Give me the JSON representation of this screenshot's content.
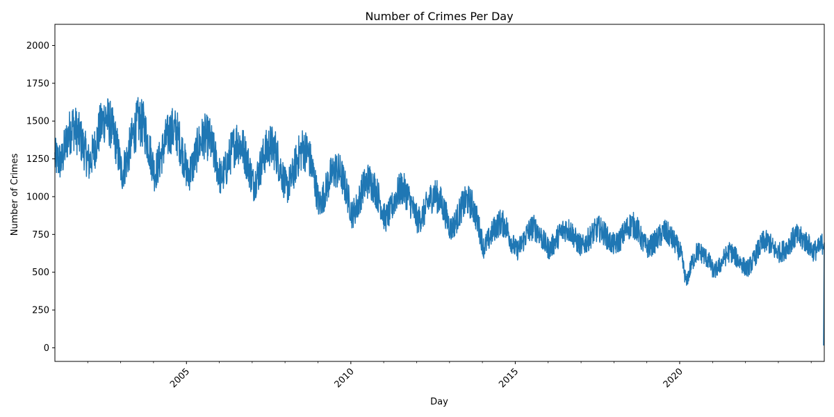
{
  "chart_data": {
    "type": "line",
    "title": "Number of Crimes Per Day",
    "xlabel": "Day",
    "ylabel": "Number of Crimes",
    "x_range": [
      "2001-01-01",
      "2024-05-25"
    ],
    "ylim": [
      -90,
      2140
    ],
    "y_ticks": [
      0,
      250,
      500,
      750,
      1000,
      1250,
      1500,
      1750,
      2000
    ],
    "x_major_ticks": [
      "2005-01-01",
      "2010-01-01",
      "2015-01-01",
      "2020-01-01"
    ],
    "x_major_tick_labels": [
      "2005",
      "2010",
      "2015",
      "2020"
    ],
    "x_minor_ticks": [
      "2002-01-01",
      "2003-01-01",
      "2004-01-01",
      "2006-01-01",
      "2007-01-01",
      "2008-01-01",
      "2009-01-01",
      "2011-01-01",
      "2012-01-01",
      "2013-01-01",
      "2014-01-01",
      "2016-01-01",
      "2017-01-01",
      "2018-01-01",
      "2019-01-01",
      "2021-01-01",
      "2022-01-01",
      "2023-01-01",
      "2024-01-01"
    ],
    "series": [
      {
        "color": "#1f77b4",
        "x": [
          "2001-01",
          "2001-03",
          "2001-05",
          "2001-07",
          "2001-09",
          "2001-11",
          "2002-01",
          "2002-03",
          "2002-05",
          "2002-07",
          "2002-09",
          "2002-11",
          "2003-01",
          "2003-03",
          "2003-05",
          "2003-07",
          "2003-09",
          "2003-11",
          "2004-01",
          "2004-03",
          "2004-05",
          "2004-07",
          "2004-09",
          "2004-11",
          "2005-01",
          "2005-03",
          "2005-05",
          "2005-07",
          "2005-09",
          "2005-11",
          "2006-01",
          "2006-03",
          "2006-05",
          "2006-07",
          "2006-09",
          "2006-11",
          "2007-01",
          "2007-03",
          "2007-05",
          "2007-07",
          "2007-09",
          "2007-11",
          "2008-01",
          "2008-03",
          "2008-05",
          "2008-07",
          "2008-09",
          "2008-11",
          "2009-01",
          "2009-03",
          "2009-05",
          "2009-07",
          "2009-09",
          "2009-11",
          "2010-01",
          "2010-03",
          "2010-05",
          "2010-07",
          "2010-09",
          "2010-11",
          "2011-01",
          "2011-03",
          "2011-05",
          "2011-07",
          "2011-09",
          "2011-11",
          "2012-01",
          "2012-03",
          "2012-05",
          "2012-07",
          "2012-09",
          "2012-11",
          "2013-01",
          "2013-03",
          "2013-05",
          "2013-07",
          "2013-09",
          "2013-11",
          "2014-01",
          "2014-03",
          "2014-05",
          "2014-07",
          "2014-09",
          "2014-11",
          "2015-01",
          "2015-03",
          "2015-05",
          "2015-07",
          "2015-09",
          "2015-11",
          "2016-01",
          "2016-03",
          "2016-05",
          "2016-07",
          "2016-09",
          "2016-11",
          "2017-01",
          "2017-03",
          "2017-05",
          "2017-07",
          "2017-09",
          "2017-11",
          "2018-01",
          "2018-03",
          "2018-05",
          "2018-07",
          "2018-09",
          "2018-11",
          "2019-01",
          "2019-03",
          "2019-05",
          "2019-07",
          "2019-09",
          "2019-11",
          "2020-01",
          "2020-03",
          "2020-05",
          "2020-07",
          "2020-09",
          "2020-11",
          "2021-01",
          "2021-03",
          "2021-05",
          "2021-07",
          "2021-09",
          "2021-11",
          "2022-01",
          "2022-03",
          "2022-05",
          "2022-07",
          "2022-09",
          "2022-11",
          "2023-01",
          "2023-03",
          "2023-05",
          "2023-07",
          "2023-09",
          "2023-11",
          "2024-01",
          "2024-03",
          "2024-05"
        ],
        "y": [
          1250,
          1230,
          1380,
          1470,
          1420,
          1330,
          1220,
          1310,
          1450,
          1530,
          1470,
          1350,
          1150,
          1250,
          1400,
          1500,
          1470,
          1320,
          1150,
          1250,
          1370,
          1440,
          1430,
          1300,
          1140,
          1210,
          1340,
          1400,
          1380,
          1260,
          1120,
          1180,
          1300,
          1370,
          1330,
          1220,
          1080,
          1160,
          1280,
          1340,
          1310,
          1180,
          1050,
          1120,
          1250,
          1320,
          1290,
          1140,
          940,
          1020,
          1130,
          1180,
          1150,
          1030,
          880,
          940,
          1060,
          1110,
          1070,
          980,
          850,
          900,
          1000,
          1060,
          1020,
          930,
          840,
          880,
          970,
          1020,
          980,
          890,
          780,
          840,
          930,
          980,
          940,
          820,
          660,
          720,
          790,
          830,
          810,
          710,
          640,
          690,
          760,
          800,
          770,
          700,
          650,
          700,
          760,
          790,
          770,
          700,
          670,
          710,
          760,
          790,
          760,
          700,
          680,
          720,
          780,
          820,
          790,
          700,
          660,
          690,
          730,
          770,
          740,
          690,
          620,
          430,
          560,
          640,
          620,
          580,
          500,
          540,
          600,
          640,
          600,
          560,
          520,
          560,
          640,
          700,
          700,
          650,
          630,
          650,
          700,
          740,
          720,
          700,
          640,
          650,
          700
        ]
      }
    ]
  }
}
